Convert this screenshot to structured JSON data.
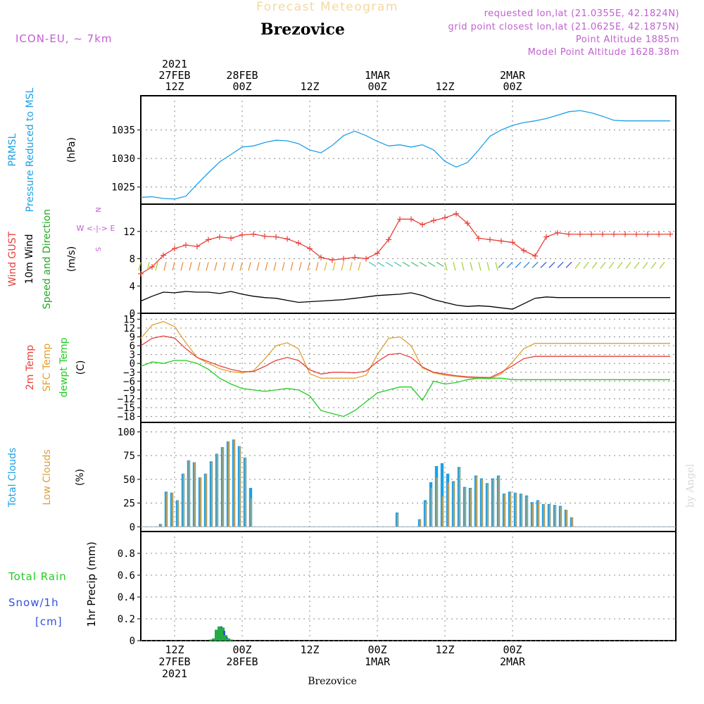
{
  "header": {
    "title": "Forecast Meteogram",
    "location": "Brezovice",
    "model": "ICON-EU, ~ 7km",
    "requested": "requested lon,lat (21.0355E, 42.1824N)",
    "gridpoint": "grid point closest lon,lat (21.0625E, 42.1875N)",
    "point_alt": "Point Altitude 1885m",
    "model_alt": "Model Point Altitude 1628.38m"
  },
  "top_axis": [
    "2021|27FEB|12Z",
    "28FEB|00Z",
    "12Z",
    "1MAR|00Z",
    "12Z",
    "2MAR|00Z"
  ],
  "bottom_axis": [
    "12Z|27FEB|2021",
    "00Z|28FEB",
    "12Z",
    "00Z|1MAR",
    "12Z",
    "00Z|2MAR"
  ],
  "footer": "Brezovice",
  "watermark": "by Angel",
  "panel_labels": {
    "pressure": [
      "PRMSL",
      "Pressure Reduced to MSL",
      "(hPa)"
    ],
    "wind": [
      "Wind GUST",
      "10m Wind",
      "Speed and Direction",
      "(m/s)"
    ],
    "compass": [
      "N",
      "W <-|-> E",
      "S"
    ],
    "temp": [
      "2m Temp",
      "SFC Temp",
      "dewpt Temp",
      "(C)"
    ],
    "clouds": [
      "Total Clouds",
      "Low Clouds",
      "(%)"
    ],
    "precip": [
      "Total Rain",
      "Snow/1h",
      "[cm]",
      "1hr Precip (mm)"
    ]
  },
  "colors": {
    "pressure": "#1ea0e6",
    "gust": "#e8413a",
    "wind": "#000000",
    "t2m": "#e8413a",
    "sfc": "#e0a030",
    "dewpt": "#22cc22",
    "total_clouds": "#1ea0e6",
    "low_clouds": "#c8a050",
    "rain": "#22aa44",
    "snow": "#3050e0",
    "label_purple": "#c060d0"
  },
  "chart_data": [
    {
      "type": "line",
      "title": "PRMSL Pressure Reduced to MSL",
      "ylabel": "(hPa)",
      "x_unit": "hours from 2021-02-27 06Z",
      "ylim": [
        1022,
        1041
      ],
      "yticks": [
        1025,
        1030,
        1035
      ],
      "series": [
        {
          "name": "PRMSL",
          "x": [
            0,
            2,
            4,
            6,
            8,
            10,
            12,
            14,
            16,
            18,
            20,
            22,
            24,
            26,
            28,
            30,
            32,
            34,
            36,
            38,
            40,
            42,
            44,
            46,
            48,
            50,
            52,
            54,
            56,
            58,
            60,
            62,
            64,
            66,
            68,
            70,
            72,
            74,
            76,
            78,
            80,
            82,
            84,
            86,
            88,
            90,
            92,
            94
          ],
          "values": [
            1023.2,
            1023.3,
            1023.0,
            1022.9,
            1023.4,
            1025.5,
            1027.5,
            1029.4,
            1030.7,
            1032.0,
            1032.2,
            1032.8,
            1033.2,
            1033.1,
            1032.6,
            1031.5,
            1031.0,
            1032.3,
            1034.0,
            1034.8,
            1034.0,
            1033.0,
            1032.2,
            1032.4,
            1032.0,
            1032.4,
            1031.5,
            1029.5,
            1028.5,
            1029.3,
            1031.5,
            1033.9,
            1035.0,
            1035.8,
            1036.3,
            1036.6,
            1037.0,
            1037.6,
            1038.2,
            1038.4,
            1038.0,
            1037.4,
            1036.7,
            1036.6,
            1036.6,
            1036.6,
            1036.6,
            1036.6
          ]
        }
      ]
    },
    {
      "type": "line",
      "title": "Wind GUST / 10m Wind Speed and Direction",
      "ylabel": "(m/s)",
      "ylim": [
        0,
        16
      ],
      "yticks": [
        0,
        4,
        8,
        12
      ],
      "series": [
        {
          "name": "Wind GUST",
          "x": [
            0,
            2,
            4,
            6,
            8,
            10,
            12,
            14,
            16,
            18,
            20,
            22,
            24,
            26,
            28,
            30,
            32,
            34,
            36,
            38,
            40,
            42,
            44,
            46,
            48,
            50,
            52,
            54,
            56,
            58,
            60,
            62,
            64,
            66,
            68,
            70,
            72,
            74,
            76,
            78,
            80,
            82,
            84,
            86,
            88,
            90,
            92,
            94
          ],
          "values": [
            5.8,
            6.8,
            8.5,
            9.5,
            10.0,
            9.8,
            10.8,
            11.2,
            11.0,
            11.5,
            11.6,
            11.3,
            11.2,
            10.9,
            10.3,
            9.5,
            8.2,
            7.8,
            8.0,
            8.2,
            8.0,
            8.8,
            10.8,
            13.8,
            13.8,
            13.0,
            13.6,
            14.0,
            14.6,
            13.2,
            11.0,
            10.8,
            10.6,
            10.4,
            9.2,
            8.4,
            11.2,
            11.8,
            11.6,
            11.6,
            11.6,
            11.6,
            11.6,
            11.6,
            11.6,
            11.6,
            11.6,
            11.6
          ]
        },
        {
          "name": "10m Wind",
          "x": [
            0,
            2,
            4,
            6,
            8,
            10,
            12,
            14,
            16,
            18,
            20,
            22,
            24,
            26,
            28,
            30,
            32,
            34,
            36,
            38,
            40,
            42,
            44,
            46,
            48,
            50,
            52,
            54,
            56,
            58,
            60,
            62,
            64,
            66,
            68,
            70,
            72,
            74,
            76,
            78,
            80,
            82,
            84,
            86,
            88,
            90,
            92,
            94
          ],
          "values": [
            1.8,
            2.5,
            3.1,
            3.0,
            3.2,
            3.1,
            3.1,
            2.9,
            3.2,
            2.8,
            2.5,
            2.3,
            2.2,
            1.9,
            1.6,
            1.7,
            1.8,
            1.9,
            2.0,
            2.2,
            2.4,
            2.6,
            2.7,
            2.8,
            3.0,
            2.6,
            2.0,
            1.6,
            1.2,
            1.0,
            1.1,
            1.0,
            0.8,
            0.6,
            1.4,
            2.2,
            2.4,
            2.3,
            2.3,
            2.3,
            2.3,
            2.3,
            2.3,
            2.3,
            2.3,
            2.3,
            2.3,
            2.3
          ]
        }
      ]
    },
    {
      "type": "line",
      "title": "2m Temp / SFC Temp / dewpt Temp",
      "ylabel": "(C)",
      "ylim": [
        -20,
        17
      ],
      "yticks": [
        -18,
        -15,
        -12,
        -9,
        -6,
        -3,
        0,
        3,
        6,
        9,
        12,
        15
      ],
      "series": [
        {
          "name": "2m Temp",
          "x": [
            0,
            2,
            4,
            6,
            8,
            10,
            12,
            14,
            16,
            18,
            20,
            22,
            24,
            26,
            28,
            30,
            32,
            34,
            36,
            38,
            40,
            42,
            44,
            46,
            48,
            50,
            52,
            54,
            56,
            58,
            60,
            62,
            64,
            66,
            68,
            70,
            72,
            74,
            76,
            78,
            80,
            82,
            84,
            86,
            88,
            90,
            92,
            94
          ],
          "values": [
            6,
            8.5,
            9.3,
            8.6,
            5,
            2,
            0.6,
            -0.8,
            -2,
            -2.8,
            -2.8,
            -1,
            1,
            2,
            1,
            -2.2,
            -3.6,
            -3,
            -3,
            -3.2,
            -2.6,
            0.6,
            3,
            3.4,
            2,
            -1.2,
            -3,
            -3.6,
            -4.2,
            -4.5,
            -4.7,
            -4.8,
            -3,
            -0.8,
            1.6,
            2.4,
            2.4,
            2.4,
            2.4,
            2.4,
            2.4,
            2.4,
            2.4,
            2.4,
            2.4,
            2.4,
            2.4,
            2.4
          ]
        },
        {
          "name": "SFC Temp",
          "x": [
            0,
            2,
            4,
            6,
            8,
            10,
            12,
            14,
            16,
            18,
            20,
            22,
            24,
            26,
            28,
            30,
            32,
            34,
            36,
            38,
            40,
            42,
            44,
            46,
            48,
            50,
            52,
            54,
            56,
            58,
            60,
            62,
            64,
            66,
            68,
            70,
            72,
            74,
            76,
            78,
            80,
            82,
            84,
            86,
            88,
            90,
            92,
            94
          ],
          "values": [
            8.5,
            13,
            14.2,
            12.5,
            7,
            2,
            0,
            -1.8,
            -2.8,
            -3.2,
            -2.5,
            1.5,
            6,
            7,
            5,
            -3.5,
            -5,
            -5,
            -5,
            -5,
            -4,
            3,
            8.5,
            9,
            6,
            -1.5,
            -3.2,
            -4,
            -4.4,
            -4.8,
            -5,
            -5.2,
            -3.5,
            0.5,
            5,
            6.8,
            6.8,
            6.8,
            6.8,
            6.8,
            6.8,
            6.8,
            6.8,
            6.8,
            6.8,
            6.8,
            6.8,
            6.8
          ]
        },
        {
          "name": "dewpt Temp",
          "x": [
            0,
            2,
            4,
            6,
            8,
            10,
            12,
            14,
            16,
            18,
            20,
            22,
            24,
            26,
            28,
            30,
            32,
            34,
            36,
            38,
            40,
            42,
            44,
            46,
            48,
            50,
            52,
            54,
            56,
            58,
            60,
            62,
            64,
            66,
            68,
            70,
            72,
            74,
            76,
            78,
            80,
            82,
            84,
            86,
            88,
            90,
            92,
            94
          ],
          "values": [
            -1,
            0.5,
            0,
            1,
            1,
            0,
            -2,
            -5,
            -7,
            -8.5,
            -9,
            -9.5,
            -9,
            -8.5,
            -9,
            -11,
            -16,
            -17,
            -18,
            -16,
            -13,
            -10,
            -9,
            -8,
            -8,
            -12.5,
            -6,
            -7,
            -6.5,
            -5.5,
            -5,
            -5,
            -5,
            -5.5,
            -5.5,
            -5.5,
            -5.5,
            -5.5,
            -5.5,
            -5.5,
            -5.5,
            -5.5,
            -5.5,
            -5.5,
            -5.5,
            -5.5,
            -5.5,
            -5.5
          ]
        }
      ]
    },
    {
      "type": "bar",
      "title": "Total Clouds / Low Clouds",
      "ylabel": "(%)",
      "ylim": [
        -5,
        110
      ],
      "yticks": [
        0,
        25,
        50,
        75,
        100
      ],
      "x_unit": "hours from 2021-02-27 06Z",
      "series": [
        {
          "name": "Total Clouds",
          "x": [
            3,
            4,
            5,
            6,
            7,
            8,
            9,
            10,
            11,
            12,
            13,
            14,
            15,
            16,
            17,
            18,
            19,
            45,
            49,
            50,
            51,
            52,
            53,
            54,
            55,
            56,
            57,
            58,
            59,
            60,
            61,
            62,
            63,
            64,
            65,
            66,
            67,
            68,
            69,
            70,
            71,
            72,
            73,
            74,
            75,
            76
          ],
          "values": [
            3,
            37,
            36,
            28,
            56,
            70,
            68,
            52,
            56,
            69,
            77,
            84,
            90,
            92,
            85,
            73,
            41,
            15,
            8,
            28,
            47,
            64,
            67,
            56,
            48,
            63,
            42,
            41,
            54,
            51,
            46,
            51,
            54,
            35,
            37,
            36,
            35,
            33,
            26,
            28,
            24,
            24,
            23,
            22,
            18,
            10
          ]
        },
        {
          "name": "Low Clouds",
          "x": [
            3,
            4,
            5,
            6,
            7,
            8,
            9,
            10,
            11,
            12,
            13,
            14,
            15,
            16,
            17,
            18,
            19,
            45,
            49,
            50,
            51,
            52,
            53,
            54,
            55,
            56,
            57,
            58,
            59,
            60,
            61,
            62,
            63,
            64,
            65,
            66,
            67,
            68,
            69,
            70,
            71,
            72,
            73,
            74,
            75,
            76
          ],
          "values": [
            3,
            36,
            36,
            28,
            56,
            70,
            68,
            52,
            56,
            69,
            77,
            84,
            90,
            92,
            85,
            73,
            30,
            14,
            8,
            26,
            41,
            52,
            32,
            47,
            47,
            62,
            41,
            40,
            53,
            50,
            45,
            50,
            53,
            34,
            36,
            36,
            35,
            32,
            25,
            27,
            24,
            23,
            22,
            21,
            18,
            10
          ]
        }
      ]
    },
    {
      "type": "bar",
      "title": "1hr Precip",
      "ylabel": "1hr Precip (mm)",
      "ylim": [
        0,
        1.0
      ],
      "yticks": [
        0,
        0.2,
        0.4,
        0.6,
        0.8
      ],
      "series": [
        {
          "name": "Total Rain",
          "x": [
            12.5,
            13,
            13.5,
            14,
            14.5,
            15,
            15.5,
            16
          ],
          "values": [
            0.01,
            0.02,
            0.1,
            0.13,
            0.12,
            0.05,
            0.02,
            0.01
          ]
        },
        {
          "name": "Snow/1h",
          "x": [
            12.5,
            13,
            13.5,
            14,
            14.5,
            15,
            15.5,
            16
          ],
          "values": [
            0.0,
            0.0,
            0.07,
            0.13,
            0.09,
            0.03,
            0.01,
            0.0
          ]
        }
      ]
    }
  ]
}
